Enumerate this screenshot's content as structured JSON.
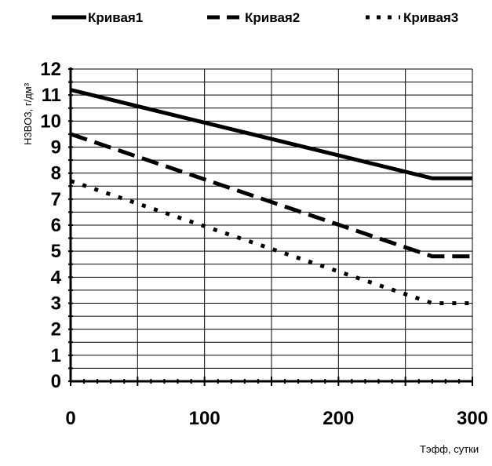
{
  "chart_data": {
    "type": "line",
    "title": "",
    "xlabel": "Тэфф, сутки",
    "ylabel": "H3BO3, г/дм³",
    "xlim": [
      0,
      300
    ],
    "ylim": [
      0,
      12
    ],
    "x_ticks": [
      0,
      100,
      200,
      300
    ],
    "y_ticks": [
      0,
      1,
      2,
      3,
      4,
      5,
      6,
      7,
      8,
      9,
      10,
      11,
      12
    ],
    "grid": true,
    "legend_position": "top",
    "series": [
      {
        "name": "Кривая1",
        "style": "solid",
        "color": "#000000",
        "points": [
          [
            0,
            11.2
          ],
          [
            270,
            7.8
          ],
          [
            300,
            7.8
          ]
        ]
      },
      {
        "name": "Кривая2",
        "style": "dashed",
        "color": "#000000",
        "points": [
          [
            0,
            9.5
          ],
          [
            270,
            4.8
          ],
          [
            300,
            4.8
          ]
        ]
      },
      {
        "name": "Кривая3",
        "style": "dotted",
        "color": "#000000",
        "points": [
          [
            0,
            7.7
          ],
          [
            270,
            3.0
          ],
          [
            300,
            3.0
          ]
        ]
      }
    ]
  }
}
